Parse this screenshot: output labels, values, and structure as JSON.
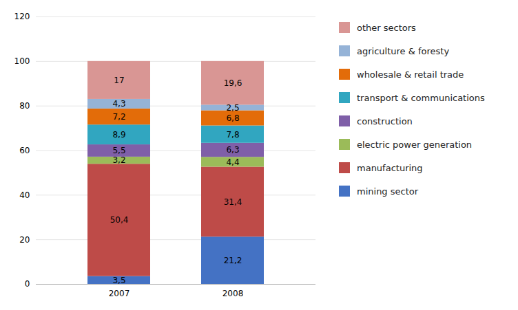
{
  "chart_data": {
    "type": "bar",
    "stacked": true,
    "data_labels": true,
    "grid": true,
    "legend": "right",
    "categories": [
      "2007",
      "2008"
    ],
    "series": [
      {
        "name": "mining sector",
        "color": "#4472C4",
        "values": [
          3.5,
          21.2
        ],
        "value_labels": [
          "3,5",
          "21,2"
        ]
      },
      {
        "name": "manufacturing",
        "color": "#BE4B48",
        "values": [
          50.4,
          31.4
        ],
        "value_labels": [
          "50,4",
          "31,4"
        ]
      },
      {
        "name": "electric power generation",
        "color": "#9BBB59",
        "values": [
          3.2,
          4.4
        ],
        "value_labels": [
          "3,2",
          "4,4"
        ]
      },
      {
        "name": "construction",
        "color": "#7F5FA8",
        "values": [
          5.5,
          6.3
        ],
        "value_labels": [
          "5,5",
          "6,3"
        ]
      },
      {
        "name": "transport & communications",
        "color": "#31A6C0",
        "values": [
          8.9,
          7.8
        ],
        "value_labels": [
          "8,9",
          "7,8"
        ]
      },
      {
        "name": "wholesale & retail trade",
        "color": "#E36C09",
        "values": [
          7.2,
          6.8
        ],
        "value_labels": [
          "7,2",
          "6,8"
        ]
      },
      {
        "name": "agriculture & foresty",
        "color": "#95B3D7",
        "values": [
          4.3,
          2.5
        ],
        "value_labels": [
          "4,3",
          "2,5"
        ]
      },
      {
        "name": "other sectors",
        "color": "#D99694",
        "values": [
          17.0,
          19.6
        ],
        "value_labels": [
          "17",
          "19,6"
        ]
      }
    ],
    "ylim": [
      0,
      120
    ],
    "yticks": [
      0,
      20,
      40,
      60,
      80,
      100,
      120
    ]
  }
}
